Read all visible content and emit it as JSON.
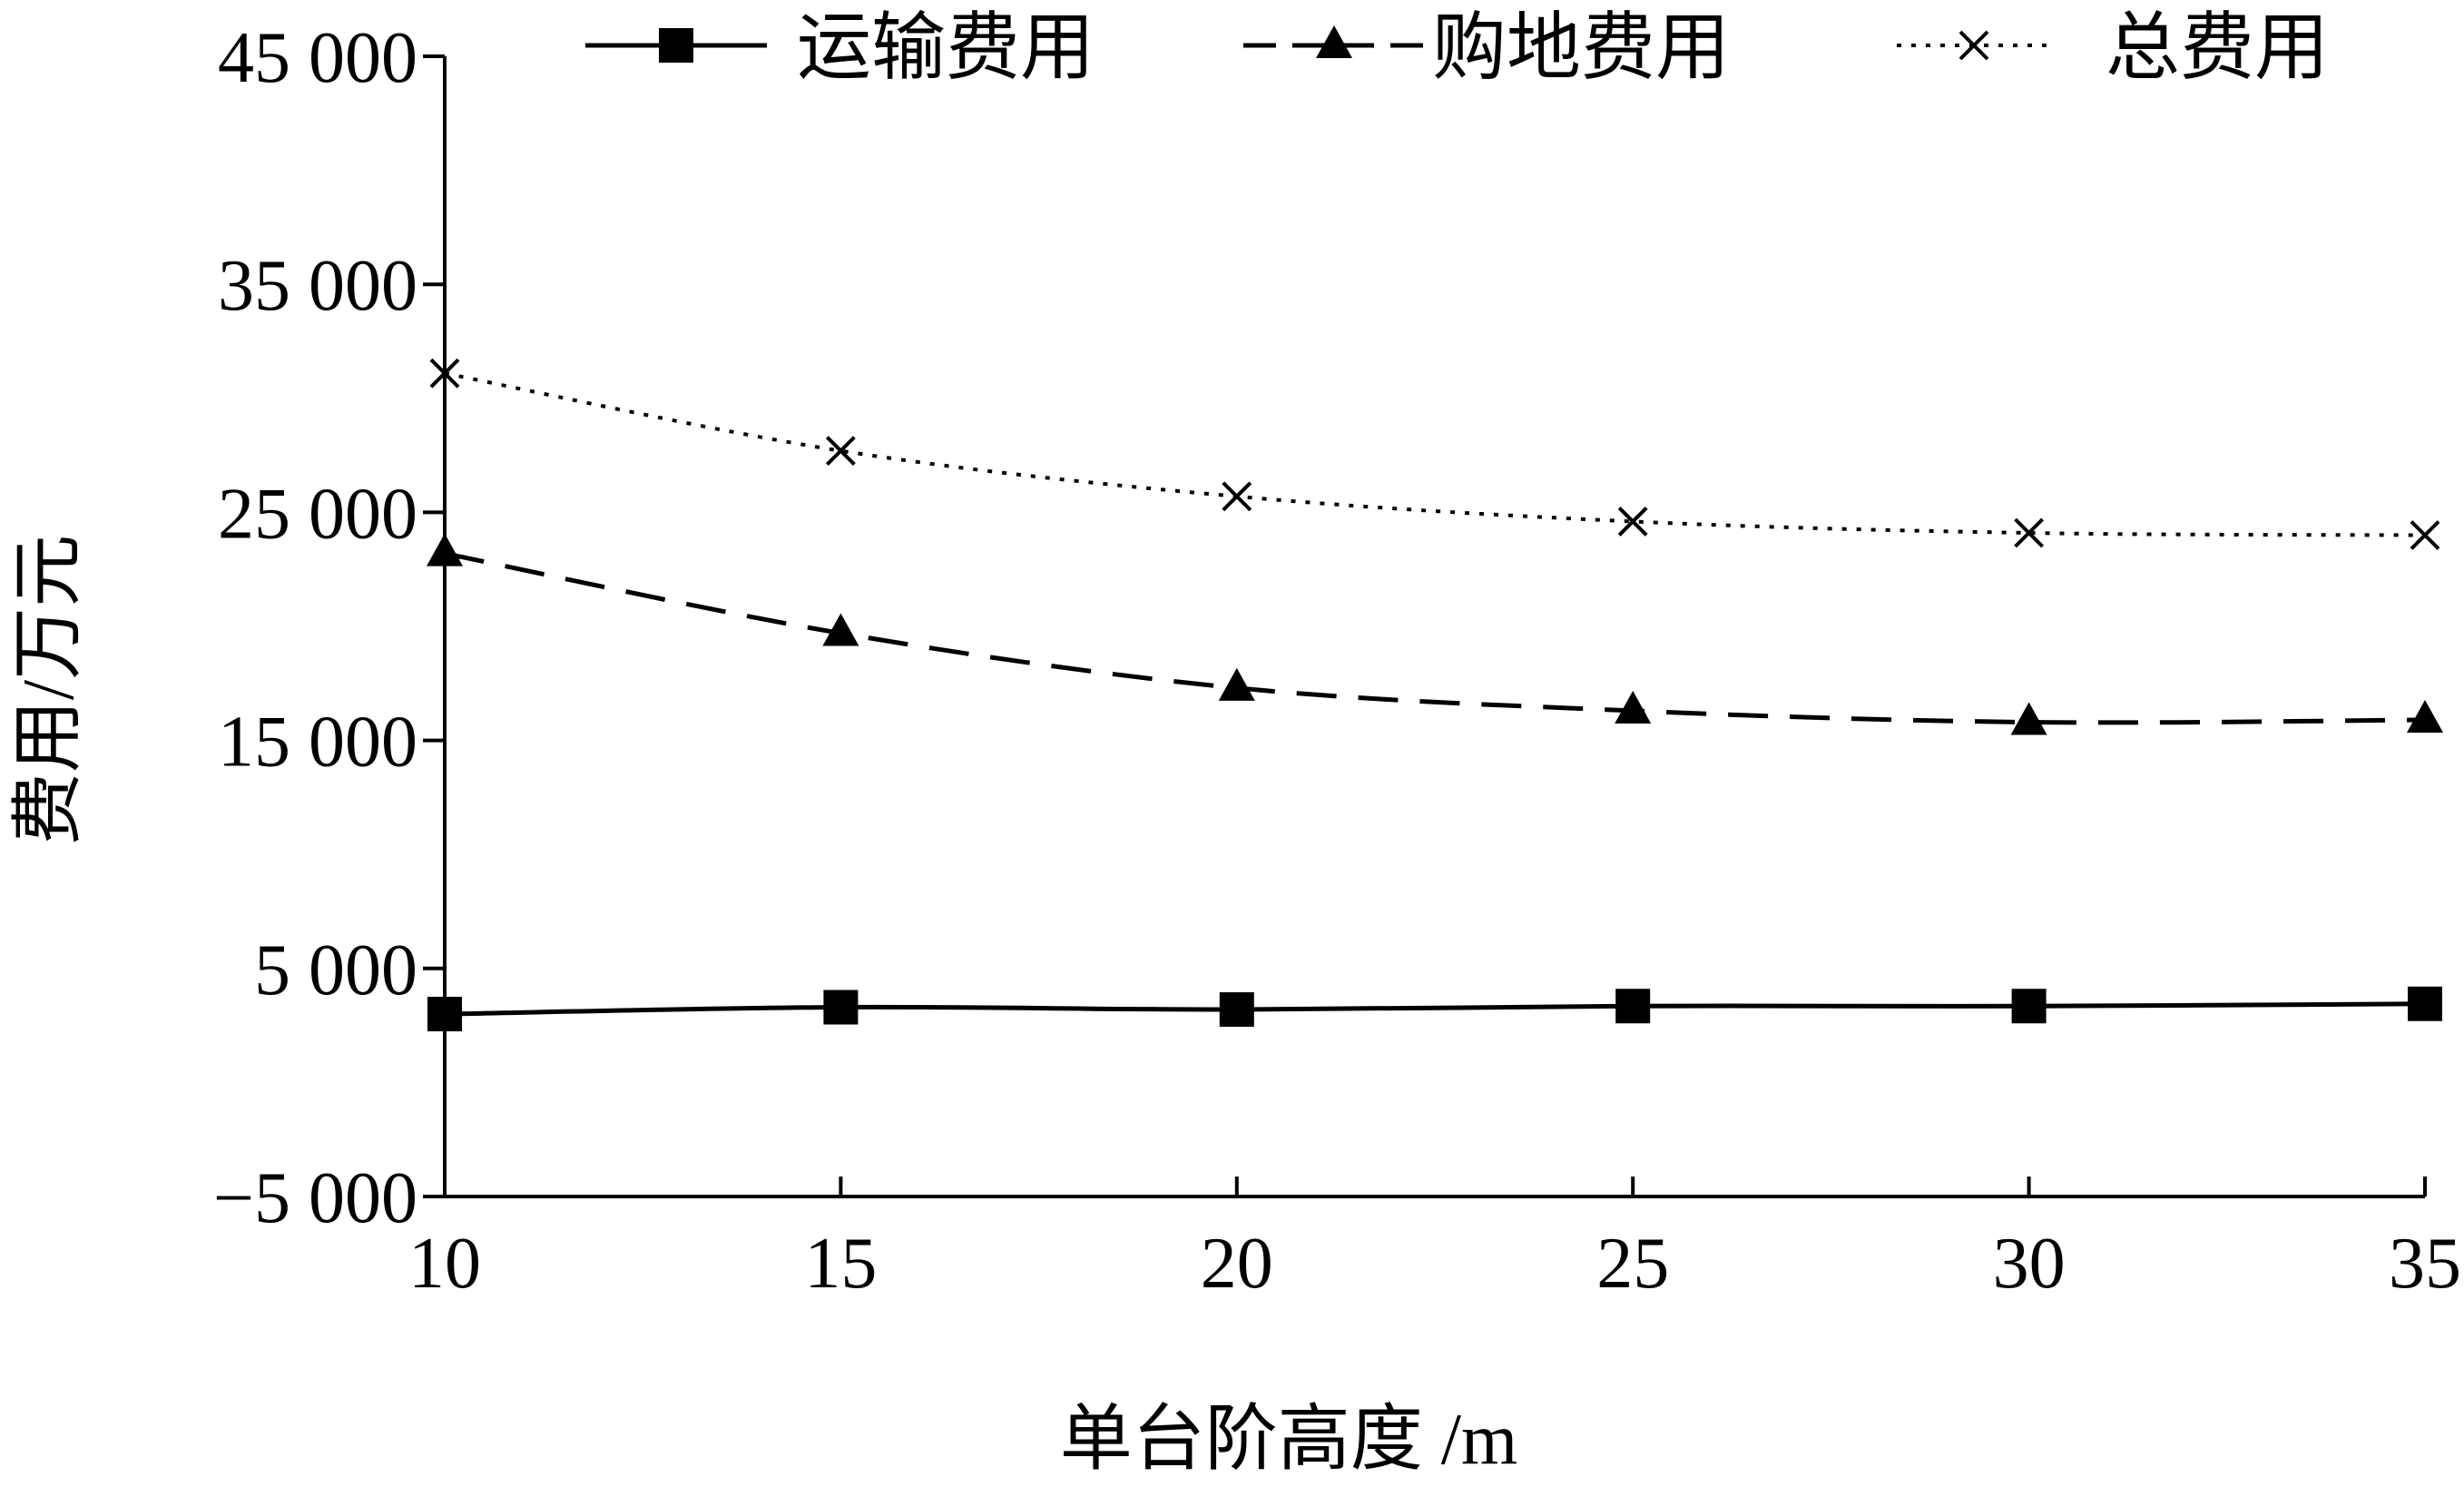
{
  "chart_data": {
    "type": "line",
    "title": "",
    "xlabel": "单台阶高度 /m",
    "ylabel": "费用/万元",
    "x": [
      10,
      15,
      20,
      25,
      30,
      35
    ],
    "xlim": [
      10,
      35
    ],
    "ylim": [
      -5000,
      45000
    ],
    "y_ticks": [
      -5000,
      5000,
      15000,
      25000,
      35000,
      45000
    ],
    "y_tick_labels": [
      "−5 000",
      "5 000",
      "15 000",
      "25 000",
      "35 000",
      "45 000"
    ],
    "x_tick_labels": [
      "10",
      "15",
      "20",
      "25",
      "30",
      "35"
    ],
    "grid": false,
    "legend_position": "top",
    "series": [
      {
        "name": "运输费用",
        "values": [
          3000,
          3300,
          3200,
          3350,
          3350,
          3450
        ],
        "marker": "square",
        "line_style": "solid",
        "color": "#000000"
      },
      {
        "name": "购地费用",
        "values": [
          23200,
          19700,
          17300,
          16300,
          15800,
          15900
        ],
        "marker": "triangle",
        "line_style": "dashed",
        "color": "#000000"
      },
      {
        "name": "总费用",
        "values": [
          31100,
          27700,
          25700,
          24600,
          24100,
          24000
        ],
        "marker": "x",
        "line_style": "dotted",
        "color": "#000000"
      }
    ]
  }
}
